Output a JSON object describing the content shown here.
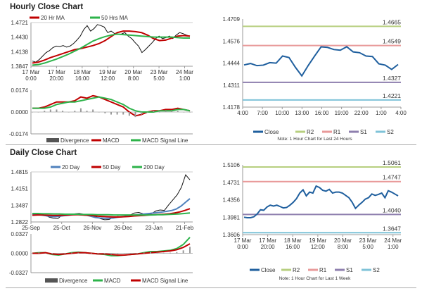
{
  "titles": {
    "hourly": "Hourly Close Chart",
    "daily": "Daily Close Chart"
  },
  "chart_data": [
    {
      "id": "hourly-price",
      "type": "line",
      "ylim": [
        1.3847,
        1.4721
      ],
      "yticks": [
        "1.4721",
        "1.4430",
        "1.4138",
        "1.3847"
      ],
      "xticks": [
        [
          "17 Mar",
          "0:00"
        ],
        [
          "17 Mar",
          "20:00"
        ],
        [
          "18 Mar",
          "16:00"
        ],
        [
          "19 Mar",
          "12:00"
        ],
        [
          "20 Mar",
          "8:00"
        ],
        [
          "23 Mar",
          "5:00"
        ],
        [
          "24 Mar",
          "1:00"
        ]
      ],
      "legend": [
        "20 Hr MA",
        "50 Hrs MA"
      ],
      "series": [
        {
          "name": "Close",
          "color": "#111111",
          "values": [
            1.395,
            1.393,
            1.398,
            1.405,
            1.412,
            1.416,
            1.422,
            1.425,
            1.424,
            1.426,
            1.423,
            1.425,
            1.43,
            1.437,
            1.445,
            1.458,
            1.466,
            1.455,
            1.46,
            1.468,
            1.466,
            1.463,
            1.452,
            1.455,
            1.45,
            1.448,
            1.449,
            1.452,
            1.445,
            1.44,
            1.432,
            1.425,
            1.412,
            1.418,
            1.425,
            1.432,
            1.44,
            1.445,
            1.44,
            1.442,
            1.445,
            1.44,
            1.447,
            1.452,
            1.45,
            1.447,
            1.445
          ]
        },
        {
          "name": "20 Hr MA",
          "color": "#c00000",
          "values": [
            1.391,
            1.393,
            1.397,
            1.402,
            1.406,
            1.41,
            1.414,
            1.418,
            1.42,
            1.423,
            1.426,
            1.43,
            1.436,
            1.444,
            1.452,
            1.455,
            1.455,
            1.454,
            1.452,
            1.447,
            1.44,
            1.436,
            1.437,
            1.441,
            1.445,
            1.446,
            1.445
          ]
        },
        {
          "name": "50 Hrs MA",
          "color": "#2db34a",
          "values": [
            1.387,
            1.388,
            1.391,
            1.395,
            1.399,
            1.404,
            1.409,
            1.415,
            1.421,
            1.428,
            1.435,
            1.44,
            1.444,
            1.447,
            1.449,
            1.448,
            1.447,
            1.446,
            1.445,
            1.444,
            1.443,
            1.443,
            1.443,
            1.443,
            1.442,
            1.441,
            1.441
          ]
        }
      ]
    },
    {
      "id": "hourly-macd",
      "type": "line",
      "ylim": [
        -0.0174,
        0.0174
      ],
      "yticks": [
        "0.0174",
        "0.0000",
        "-0.0174"
      ],
      "legend": [
        "Divergence",
        "MACD",
        "MACD Signal Line"
      ],
      "series": [
        {
          "name": "MACD",
          "color": "#c00000",
          "values": [
            0.003,
            0.003,
            0.004,
            0.006,
            0.008,
            0.008,
            0.008,
            0.009,
            0.012,
            0.011,
            0.013,
            0.012,
            0.01,
            0.008,
            0.006,
            0.004,
            0.0,
            -0.003,
            -0.002,
            0.0,
            0.001,
            0.001,
            0.002,
            0.002,
            0.003,
            0.002,
            0.001
          ]
        },
        {
          "name": "MACD Signal Line",
          "color": "#2db34a",
          "values": [
            0.003,
            0.003,
            0.003,
            0.004,
            0.006,
            0.007,
            0.008,
            0.008,
            0.009,
            0.01,
            0.011,
            0.012,
            0.011,
            0.01,
            0.008,
            0.006,
            0.003,
            0.001,
            0.0,
            0.0,
            0.0,
            0.001,
            0.001,
            0.001,
            0.002,
            0.002,
            0.001
          ]
        },
        {
          "name": "Divergence",
          "color": "#777777",
          "bars": true,
          "values": [
            0,
            0,
            0.001,
            0.002,
            0.002,
            0.001,
            0,
            0.001,
            0.003,
            0.001,
            0.002,
            0,
            -0.001,
            -0.002,
            -0.002,
            -0.002,
            -0.003,
            -0.004,
            -0.002,
            0,
            0.001,
            0,
            0.001,
            0.001,
            0.001,
            0,
            0
          ]
        }
      ]
    },
    {
      "id": "hourly-24h",
      "type": "line",
      "ylim": [
        1.4178,
        1.4709
      ],
      "yticks": [
        "1.4709",
        "1.4576",
        "1.4444",
        "1.4311",
        "1.4178"
      ],
      "xticks": [
        [
          "4:00"
        ],
        [
          "7:00"
        ],
        [
          "10:00"
        ],
        [
          "13:00"
        ],
        [
          "16:00"
        ],
        [
          "19:00"
        ],
        [
          "22:00"
        ],
        [
          "1:00"
        ],
        [
          "4:00"
        ]
      ],
      "legend": [
        "Close",
        "R2",
        "R1",
        "S1",
        "S2"
      ],
      "note": "Note: 1 Hour Chart for Last 24 Hours",
      "levels": [
        {
          "name": "R2",
          "value": 1.4665,
          "label": "1.4665",
          "color": "#b7cf7f"
        },
        {
          "name": "R1",
          "value": 1.4549,
          "label": "1.4549",
          "color": "#e89a9a"
        },
        {
          "name": "S1",
          "value": 1.4327,
          "label": "1.4327",
          "color": "#8e7fae"
        },
        {
          "name": "S2",
          "value": 1.4221,
          "label": "1.4221",
          "color": "#7fc3d8"
        }
      ],
      "series": [
        {
          "name": "Close",
          "color": "#1f5f9e",
          "values": [
            1.4432,
            1.4441,
            1.4428,
            1.4431,
            1.4446,
            1.4443,
            1.4486,
            1.4477,
            1.4418,
            1.4366,
            1.4429,
            1.4486,
            1.4541,
            1.4538,
            1.4525,
            1.4521,
            1.4542,
            1.4511,
            1.4506,
            1.4486,
            1.4483,
            1.4439,
            1.4431,
            1.4405,
            1.4435
          ]
        }
      ]
    },
    {
      "id": "daily-price",
      "type": "line",
      "ylim": [
        1.2822,
        1.4815
      ],
      "yticks": [
        "1.4815",
        "1.4151",
        "1.3487",
        "1.2822"
      ],
      "xticks": [
        [
          "25-Sep"
        ],
        [
          "25-Oct"
        ],
        [
          "26-Nov"
        ],
        [
          "26-Dec"
        ],
        [
          "23-Jan"
        ],
        [
          "21-Feb"
        ]
      ],
      "legend": [
        "20 Day",
        "50 Day",
        "200 Day"
      ],
      "series": [
        {
          "name": "Close",
          "color": "#111111",
          "values": [
            1.313,
            1.316,
            1.315,
            1.309,
            1.301,
            1.297,
            1.296,
            1.31,
            1.313,
            1.312,
            1.315,
            1.316,
            1.313,
            1.31,
            1.307,
            1.303,
            1.295,
            1.291,
            1.292,
            1.3,
            1.304,
            1.303,
            1.306,
            1.31,
            1.318,
            1.32,
            1.315,
            1.312,
            1.315,
            1.326,
            1.33,
            1.328,
            1.35,
            1.37,
            1.39,
            1.42,
            1.47,
            1.45
          ]
        },
        {
          "name": "20 Day",
          "color": "#4f81bd",
          "values": [
            1.31,
            1.311,
            1.31,
            1.307,
            1.304,
            1.303,
            1.305,
            1.307,
            1.309,
            1.311,
            1.312,
            1.311,
            1.309,
            1.305,
            1.3,
            1.298,
            1.297,
            1.297,
            1.298,
            1.301,
            1.303,
            1.305,
            1.308,
            1.31,
            1.312,
            1.314,
            1.316,
            1.318,
            1.32,
            1.322,
            1.325,
            1.328,
            1.334,
            1.345,
            1.36,
            1.375
          ]
        },
        {
          "name": "50 Day",
          "color": "#c00000",
          "values": [
            1.309,
            1.31,
            1.31,
            1.309,
            1.308,
            1.308,
            1.309,
            1.31,
            1.311,
            1.311,
            1.31,
            1.309,
            1.307,
            1.305,
            1.304,
            1.303,
            1.302,
            1.302,
            1.303,
            1.304,
            1.306,
            1.307,
            1.308,
            1.31,
            1.311,
            1.312,
            1.313,
            1.315,
            1.318,
            1.322,
            1.328,
            1.335
          ]
        },
        {
          "name": "200 Day",
          "color": "#2db34a",
          "values": [
            1.316,
            1.316,
            1.315,
            1.315,
            1.314,
            1.314,
            1.313,
            1.313,
            1.313,
            1.312,
            1.312,
            1.312,
            1.311,
            1.311,
            1.311,
            1.31,
            1.31,
            1.31,
            1.31,
            1.31,
            1.31,
            1.31,
            1.31,
            1.311,
            1.311,
            1.312,
            1.313,
            1.314,
            1.316,
            1.318
          ]
        }
      ]
    },
    {
      "id": "daily-macd",
      "type": "line",
      "ylim": [
        -0.0327,
        0.0327
      ],
      "yticks": [
        "0.0327",
        "0.0000",
        "-0.0327"
      ],
      "legend": [
        "Divergence",
        "MACD",
        "MACD Signal Line"
      ],
      "series": [
        {
          "name": "MACD",
          "color": "#2db34a",
          "values": [
            0,
            0.001,
            0.001,
            -0.002,
            -0.003,
            -0.001,
            0.001,
            0.002,
            0.001,
            0,
            -0.001,
            -0.002,
            -0.004,
            -0.004,
            -0.003,
            -0.002,
            -0.001,
            0.001,
            0.003,
            0.003,
            0.004,
            0.005,
            0.008,
            0.015,
            0.027
          ]
        },
        {
          "name": "MACD Signal Line",
          "color": "#c00000",
          "values": [
            0,
            0,
            0.001,
            -0.001,
            -0.002,
            -0.001,
            0,
            0.001,
            0.001,
            0,
            -0.001,
            -0.001,
            -0.002,
            -0.003,
            -0.003,
            -0.002,
            -0.001,
            0,
            0.001,
            0.002,
            0.003,
            0.004,
            0.006,
            0.01,
            0.016
          ]
        },
        {
          "name": "Divergence",
          "color": "#777777",
          "bars": true,
          "values": [
            0,
            0.001,
            0,
            -0.001,
            -0.001,
            0,
            0.001,
            0.001,
            0,
            0,
            0,
            -0.001,
            -0.002,
            -0.001,
            0,
            0,
            0,
            0.001,
            0.002,
            0.001,
            0.001,
            0.001,
            0.002,
            0.005,
            0.011
          ]
        }
      ]
    },
    {
      "id": "weekly",
      "type": "line",
      "ylim": [
        1.3606,
        1.5106
      ],
      "yticks": [
        "1.5106",
        "1.4731",
        "1.4356",
        "1.3981",
        "1.3606"
      ],
      "xticks": [
        [
          "17 Mar",
          "0:00"
        ],
        [
          "17 Mar",
          "20:00"
        ],
        [
          "18 Mar",
          "16:00"
        ],
        [
          "19 Mar",
          "12:00"
        ],
        [
          "20 Mar",
          "8:00"
        ],
        [
          "23 Mar",
          "5:00"
        ],
        [
          "24 Mar",
          "1:00"
        ]
      ],
      "legend": [
        "Close",
        "R2",
        "R1",
        "S1",
        "S2"
      ],
      "note": "Note: 1 Hour Chart for  Last 1 Week",
      "levels": [
        {
          "name": "R2",
          "value": 1.5061,
          "label": "1.5061",
          "color": "#b7cf7f"
        },
        {
          "name": "R1",
          "value": 1.4747,
          "label": "1.4747",
          "color": "#e89a9a"
        },
        {
          "name": "S1",
          "value": 1.404,
          "label": "1.4040",
          "color": "#8e7fae"
        },
        {
          "name": "S2",
          "value": 1.3647,
          "label": "1.3647",
          "color": "#7fc3d8"
        }
      ],
      "series": [
        {
          "name": "Close",
          "color": "#1f5f9e",
          "values": [
            1.398,
            1.397,
            1.397,
            1.399,
            1.405,
            1.414,
            1.413,
            1.42,
            1.424,
            1.422,
            1.424,
            1.421,
            1.418,
            1.419,
            1.424,
            1.43,
            1.438,
            1.45,
            1.457,
            1.444,
            1.452,
            1.45,
            1.465,
            1.462,
            1.456,
            1.454,
            1.458,
            1.45,
            1.452,
            1.452,
            1.45,
            1.445,
            1.44,
            1.43,
            1.417,
            1.424,
            1.43,
            1.437,
            1.44,
            1.448,
            1.445,
            1.447,
            1.45,
            1.44,
            1.455,
            1.452,
            1.448,
            1.444
          ]
        }
      ]
    }
  ]
}
